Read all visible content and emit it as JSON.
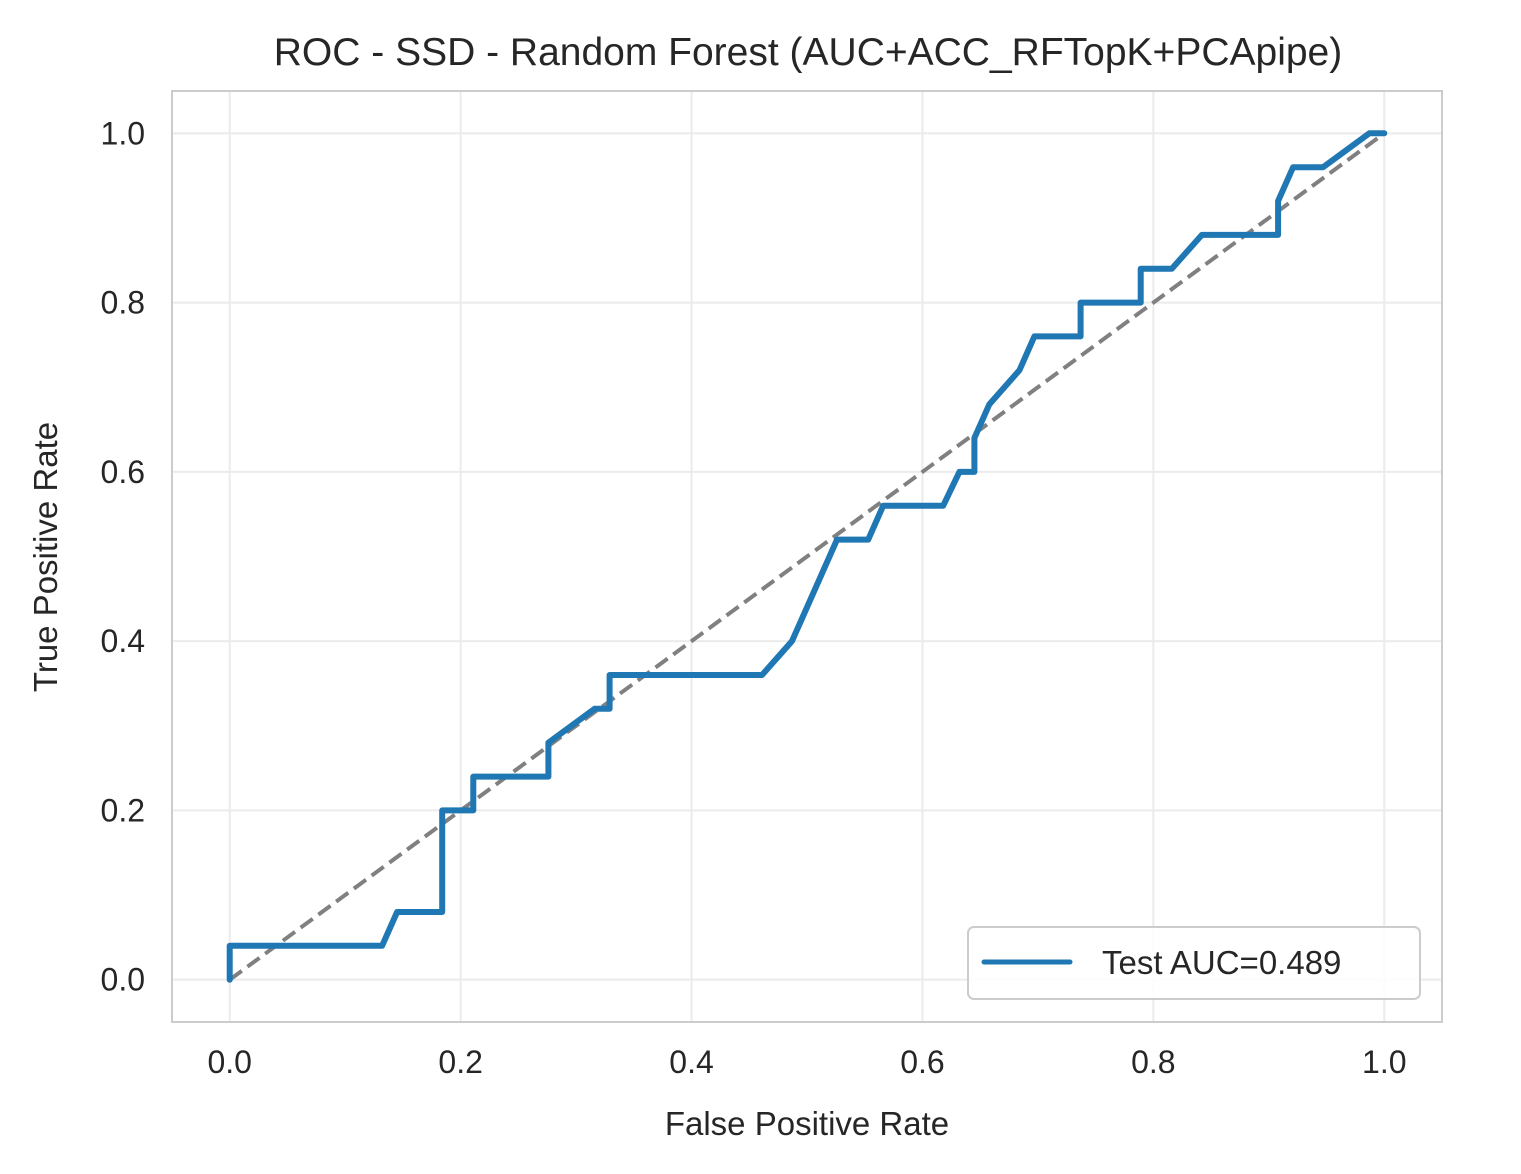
{
  "chart_data": {
    "type": "line",
    "title": "ROC - SSD - Random Forest (AUC+ACC_RFTopK+PCApipe)",
    "xlabel": "False Positive Rate",
    "ylabel": "True Positive Rate",
    "xlim": [
      -0.05,
      1.05
    ],
    "ylim": [
      -0.05,
      1.05
    ],
    "xticks": [
      0.0,
      0.2,
      0.4,
      0.6,
      0.8,
      1.0
    ],
    "yticks": [
      0.0,
      0.2,
      0.4,
      0.6,
      0.8,
      1.0
    ],
    "xtick_labels": [
      "0.0",
      "0.2",
      "0.4",
      "0.6",
      "0.8",
      "1.0"
    ],
    "ytick_labels": [
      "0.0",
      "0.2",
      "0.4",
      "0.6",
      "0.8",
      "1.0"
    ],
    "grid": true,
    "legend_position": "lower-right",
    "series": [
      {
        "name": "Test AUC=0.489",
        "color": "#1f77b4",
        "style": "solid",
        "x": [
          0.0,
          0.0,
          0.132,
          0.145,
          0.184,
          0.184,
          0.211,
          0.211,
          0.276,
          0.276,
          0.316,
          0.329,
          0.329,
          0.461,
          0.487,
          0.526,
          0.553,
          0.566,
          0.618,
          0.632,
          0.645,
          0.645,
          0.658,
          0.684,
          0.697,
          0.737,
          0.737,
          0.789,
          0.789,
          0.816,
          0.842,
          0.908,
          0.908,
          0.921,
          0.947,
          0.987,
          1.0
        ],
        "y": [
          0.0,
          0.04,
          0.04,
          0.08,
          0.08,
          0.2,
          0.2,
          0.24,
          0.24,
          0.28,
          0.32,
          0.32,
          0.36,
          0.36,
          0.4,
          0.52,
          0.52,
          0.56,
          0.56,
          0.6,
          0.6,
          0.64,
          0.68,
          0.72,
          0.76,
          0.76,
          0.8,
          0.8,
          0.84,
          0.84,
          0.88,
          0.88,
          0.92,
          0.96,
          0.96,
          1.0,
          1.0
        ]
      },
      {
        "color": "#808080",
        "style": "dashed",
        "x": [
          0.0,
          1.0
        ],
        "y": [
          0.0,
          1.0
        ]
      }
    ]
  }
}
